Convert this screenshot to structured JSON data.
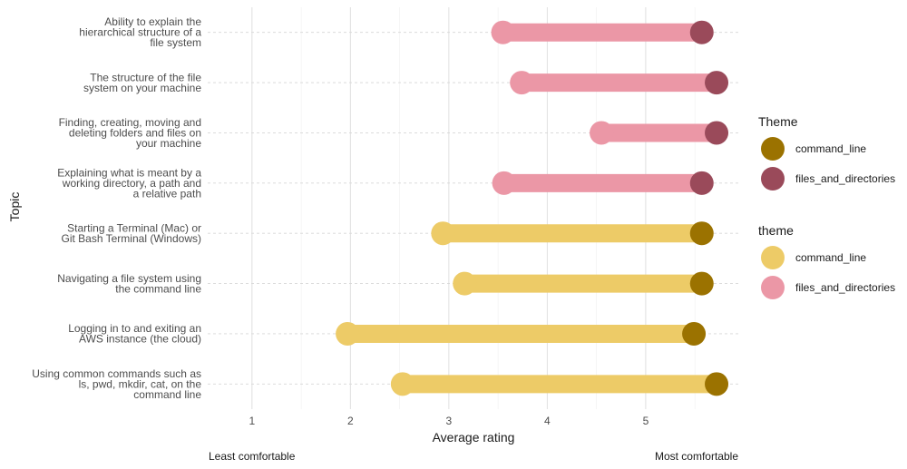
{
  "chart_data": {
    "type": "dumbbell",
    "xlabel": "Average rating",
    "ylabel": "Topic",
    "xlim": [
      0.55,
      5.95
    ],
    "xticks": [
      "1",
      "2",
      "3",
      "4",
      "5"
    ],
    "grid": true,
    "low_label": "Least comfortable",
    "high_label": "Most comfortable",
    "topics": [
      {
        "lines": [
          "Ability to explain the",
          "hierarchical structure of a",
          "file system"
        ],
        "theme": "files_and_directories",
        "start": 3.55,
        "end": 5.57
      },
      {
        "lines": [
          "The structure of the file",
          "system on your machine"
        ],
        "theme": "files_and_directories",
        "start": 3.74,
        "end": 5.72
      },
      {
        "lines": [
          "Finding, creating, moving and",
          "deleting folders and files on",
          "your machine"
        ],
        "theme": "files_and_directories",
        "start": 4.55,
        "end": 5.72
      },
      {
        "lines": [
          "Explaining what is meant by a",
          "working directory, a path and",
          "a relative path"
        ],
        "theme": "files_and_directories",
        "start": 3.56,
        "end": 5.57
      },
      {
        "lines": [
          "Starting a Terminal (Mac) or",
          "Git Bash Terminal (Windows)"
        ],
        "theme": "command_line",
        "start": 2.94,
        "end": 5.57
      },
      {
        "lines": [
          "Navigating a file system using",
          "the command line"
        ],
        "theme": "command_line",
        "start": 3.16,
        "end": 5.57
      },
      {
        "lines": [
          "Logging in to and exiting an",
          "AWS instance (the cloud)"
        ],
        "theme": "command_line",
        "start": 1.97,
        "end": 5.49
      },
      {
        "lines": [
          "Using common commands such as",
          "ls, pwd, mkdir, cat, on the",
          "command line"
        ],
        "theme": "command_line",
        "start": 2.53,
        "end": 5.72
      }
    ],
    "legends": [
      {
        "title": "Theme",
        "entries": [
          {
            "label": "command_line",
            "color": "#9b7200"
          },
          {
            "label": "files_and_directories",
            "color": "#9a4a5a"
          }
        ]
      },
      {
        "title": "theme",
        "entries": [
          {
            "label": "command_line",
            "color": "#edcb67"
          },
          {
            "label": "files_and_directories",
            "color": "#eb97a6"
          }
        ]
      }
    ],
    "colors": {
      "command_line": {
        "bar": "#edcb67",
        "end": "#9b7200"
      },
      "files_and_directories": {
        "bar": "#eb97a6",
        "end": "#9a4a5a"
      }
    },
    "legend_position": "right"
  }
}
